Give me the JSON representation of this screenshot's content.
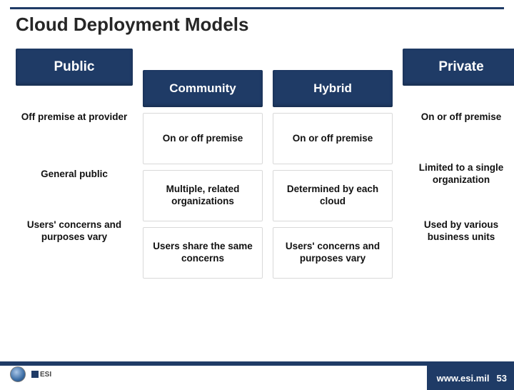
{
  "slide": {
    "title": "Cloud Deployment Models",
    "colors": {
      "header_bg": "#1f3b66",
      "header_text": "#ffffff",
      "cell_border": "#d9d9d9",
      "body_text": "#111111",
      "rule": "#1f3b66",
      "background": "#ffffff"
    },
    "headers": {
      "public": "Public",
      "community": "Community",
      "hybrid": "Hybrid",
      "private": "Private"
    },
    "public_col": {
      "r1": "Off premise at provider",
      "r2": "General public",
      "r3": "Users' concerns and purposes vary"
    },
    "community_col": {
      "r1": "On or off premise",
      "r2": "Multiple, related organizations",
      "r3": "Users share the same concerns"
    },
    "hybrid_col": {
      "r1": "On or off premise",
      "r2": "Determined by each cloud",
      "r3": "Users' concerns and purposes vary"
    },
    "private_col": {
      "r1": "On or off premise",
      "r2": "Limited to a single organization",
      "r3": "Used by various business units"
    }
  },
  "footer": {
    "url": "www.esi.mil",
    "page_number": "53"
  }
}
